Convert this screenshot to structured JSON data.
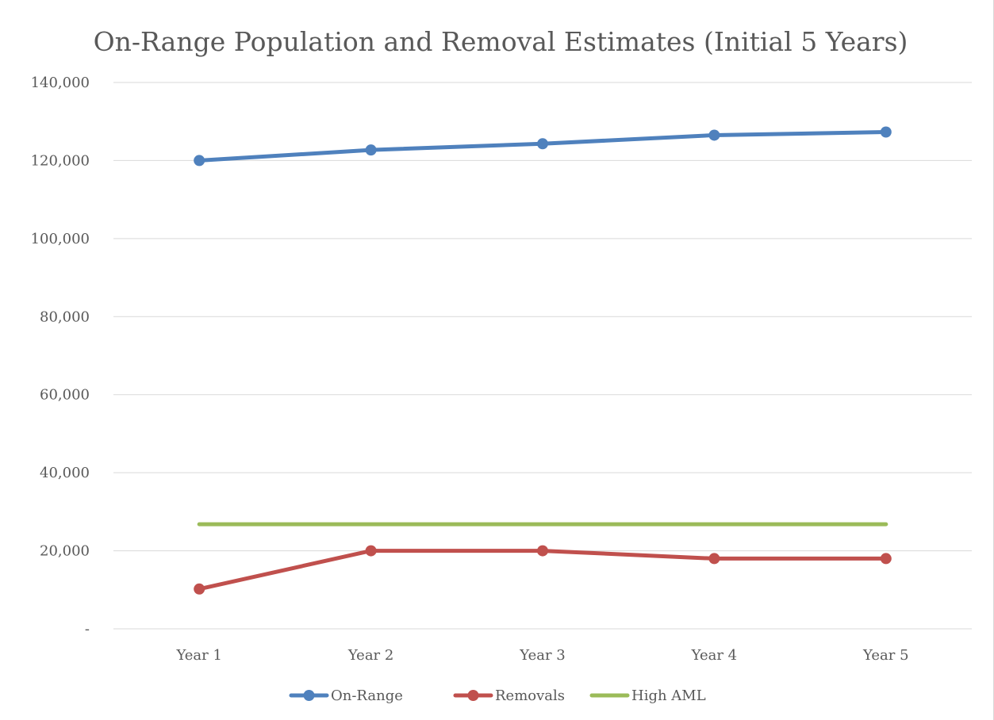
{
  "chart_data": {
    "type": "line",
    "title": "On-Range Population and Removal Estimates (Initial 5 Years)",
    "xlabel": "",
    "ylabel": "",
    "categories": [
      "Year 1",
      "Year 2",
      "Year 3",
      "Year 4",
      "Year 5"
    ],
    "ylim": [
      0,
      140000
    ],
    "y_ticks": [
      {
        "value": 0,
        "label": "-"
      },
      {
        "value": 20000,
        "label": "20,000"
      },
      {
        "value": 40000,
        "label": "40,000"
      },
      {
        "value": 60000,
        "label": "60,000"
      },
      {
        "value": 80000,
        "label": "80,000"
      },
      {
        "value": 100000,
        "label": "100,000"
      },
      {
        "value": 120000,
        "label": "120,000"
      },
      {
        "value": 140000,
        "label": "140,000"
      }
    ],
    "grid": true,
    "legend_position": "bottom",
    "series": [
      {
        "name": "On-Range",
        "values": [
          120000,
          122700,
          124300,
          126500,
          127300
        ],
        "color": "#4f81bd",
        "markers": true
      },
      {
        "name": "Removals",
        "values": [
          10200,
          20000,
          20000,
          18000,
          18000
        ],
        "color": "#c0504d",
        "markers": true
      },
      {
        "name": "High AML",
        "values": [
          26800,
          26800,
          26800,
          26800,
          26800
        ],
        "color": "#9bbb59",
        "markers": false
      }
    ]
  }
}
